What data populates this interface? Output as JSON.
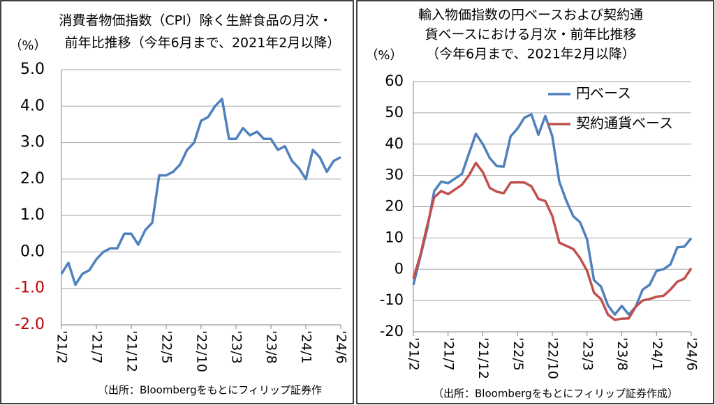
{
  "chart_data": [
    {
      "type": "line",
      "title": [
        "消費者物価指数（CPI）除く生鮮食品の月次・",
        "前年比推移（今年6月まで、2021年2月以降）"
      ],
      "y_unit": "（%）",
      "source": "（出所：Bloombergをもとにフィリップ証券作",
      "categories": [
        "'21/2",
        null,
        null,
        null,
        null,
        "'21/7",
        null,
        null,
        null,
        null,
        "'21/12",
        null,
        null,
        null,
        null,
        "'22/5",
        null,
        null,
        null,
        null,
        "'22/10",
        null,
        null,
        null,
        null,
        "'23/3",
        null,
        null,
        null,
        null,
        "'23/8",
        null,
        null,
        null,
        null,
        "'24/1",
        null,
        null,
        null,
        null,
        "'24/6"
      ],
      "series": [
        {
          "color": "#4f81bd",
          "values": [
            -0.6,
            -0.3,
            -0.9,
            -0.6,
            -0.5,
            -0.2,
            0.0,
            0.1,
            0.1,
            0.5,
            0.5,
            0.2,
            0.6,
            0.8,
            2.1,
            2.1,
            2.2,
            2.4,
            2.8,
            3.0,
            3.6,
            3.7,
            4.0,
            4.2,
            3.1,
            3.1,
            3.4,
            3.2,
            3.3,
            3.1,
            3.1,
            2.8,
            2.9,
            2.5,
            2.3,
            2.0,
            2.8,
            2.6,
            2.2,
            2.5,
            2.6
          ]
        }
      ],
      "ylim": [
        -2,
        5
      ],
      "yticks": [
        {
          "value": 5,
          "label": "5.0"
        },
        {
          "value": 4,
          "label": "4.0"
        },
        {
          "value": 3,
          "label": "3.0"
        },
        {
          "value": 2,
          "label": "2.0"
        },
        {
          "value": 1,
          "label": "1.0"
        },
        {
          "value": 0,
          "label": "0.0"
        },
        {
          "value": -1,
          "label": "-1.0"
        },
        {
          "value": -2,
          "label": "-2.0"
        }
      ],
      "negative_tick_color": "#c00000",
      "grid": true
    },
    {
      "type": "line",
      "title": [
        "輸入物価指数の円ベースおよび契約通",
        "貨ベースにおける月次・前年比推移",
        "（今年6月まで、2021年2月以降）"
      ],
      "y_unit": "（%）",
      "source": "（出所：Bloombergをもとにフィリップ証券作成）",
      "categories": [
        "'21/2",
        null,
        null,
        null,
        null,
        "'21/7",
        null,
        null,
        null,
        null,
        "'21/12",
        null,
        null,
        null,
        null,
        "'22/5",
        null,
        null,
        null,
        null,
        "'22/10",
        null,
        null,
        null,
        null,
        "'23/3",
        null,
        null,
        null,
        null,
        "'23/8",
        null,
        null,
        null,
        null,
        "'24/1",
        null,
        null,
        null,
        null,
        "'24/6"
      ],
      "series": [
        {
          "name": "円ベース",
          "color": "#4f81bd",
          "values": [
            -5,
            4,
            13,
            25,
            28,
            27.5,
            29,
            30.5,
            37,
            43.3,
            40,
            35.5,
            33,
            32.8,
            42.5,
            45,
            48.5,
            49.5,
            43,
            49,
            42.5,
            28,
            22,
            17,
            15,
            9.5,
            -3.5,
            -5.5,
            -11.5,
            -14.5,
            -11.7,
            -14.5,
            -12,
            -6.5,
            -5,
            -0.5,
            0,
            1.5,
            7,
            7.2,
            9.9
          ]
        },
        {
          "name": "契約通貨ベース",
          "color": "#c0504d",
          "values": [
            -3,
            4.5,
            14,
            23,
            25,
            24,
            25.5,
            27,
            30,
            34,
            31,
            26,
            24.8,
            24.3,
            27.7,
            27.8,
            27.7,
            26.5,
            22.5,
            21.8,
            17,
            8.5,
            7.5,
            6.5,
            3.5,
            -0.5,
            -7.5,
            -9.5,
            -14.5,
            -16.2,
            -15.8,
            -15.7,
            -12,
            -10,
            -9.5,
            -8.8,
            -8.5,
            -6.5,
            -4,
            -3,
            0.3
          ]
        }
      ],
      "ylim": [
        -20,
        60
      ],
      "yticks": [
        60,
        50,
        40,
        30,
        20,
        10,
        0,
        -10,
        -20
      ],
      "legend": "upper right",
      "grid": true
    }
  ]
}
